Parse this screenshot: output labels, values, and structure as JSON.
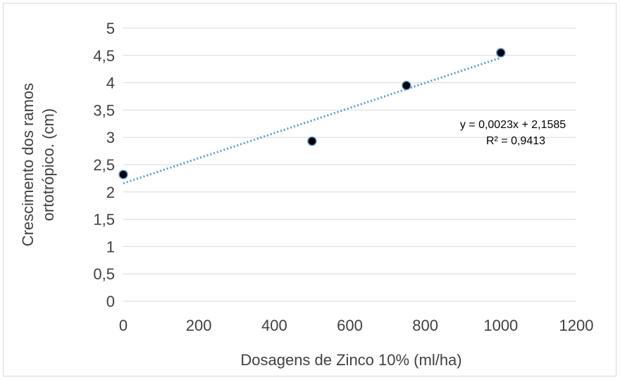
{
  "chart_data": {
    "type": "scatter",
    "title": "",
    "xlabel": "Dosagens de Zinco 10% (ml/ha)",
    "ylabel_lines": [
      "Crescimento dos ramos",
      "ortotrópico. (cm)"
    ],
    "xlim": [
      0,
      1200
    ],
    "ylim": [
      0,
      5
    ],
    "x_ticks": [
      0,
      200,
      400,
      600,
      800,
      1000,
      1200
    ],
    "x_tick_labels": [
      "0",
      "200",
      "400",
      "600",
      "800",
      "1000",
      "1200"
    ],
    "y_ticks": [
      0,
      0.5,
      1,
      1.5,
      2,
      2.5,
      3,
      3.5,
      4,
      4.5,
      5
    ],
    "y_tick_labels": [
      "0",
      "0,5",
      "1",
      "1,5",
      "2",
      "2,5",
      "3",
      "3,5",
      "4",
      "4,5",
      "5"
    ],
    "grid": "horizontal",
    "x": [
      0,
      500,
      750,
      1000
    ],
    "y": [
      2.32,
      2.93,
      3.95,
      4.55
    ],
    "trendline": {
      "type": "linear",
      "slope": 0.0023,
      "intercept": 2.1585,
      "x_range": [
        0,
        1000
      ],
      "equation": "y = 0,0023x + 2,1585",
      "r_squared": "R² = 0,9413"
    },
    "colors": {
      "marker_fill": "#000000",
      "marker_stroke": "#5b9bd5",
      "trendline": "#5b9bd5",
      "grid": "#d9d9d9",
      "text": "#404040"
    }
  }
}
